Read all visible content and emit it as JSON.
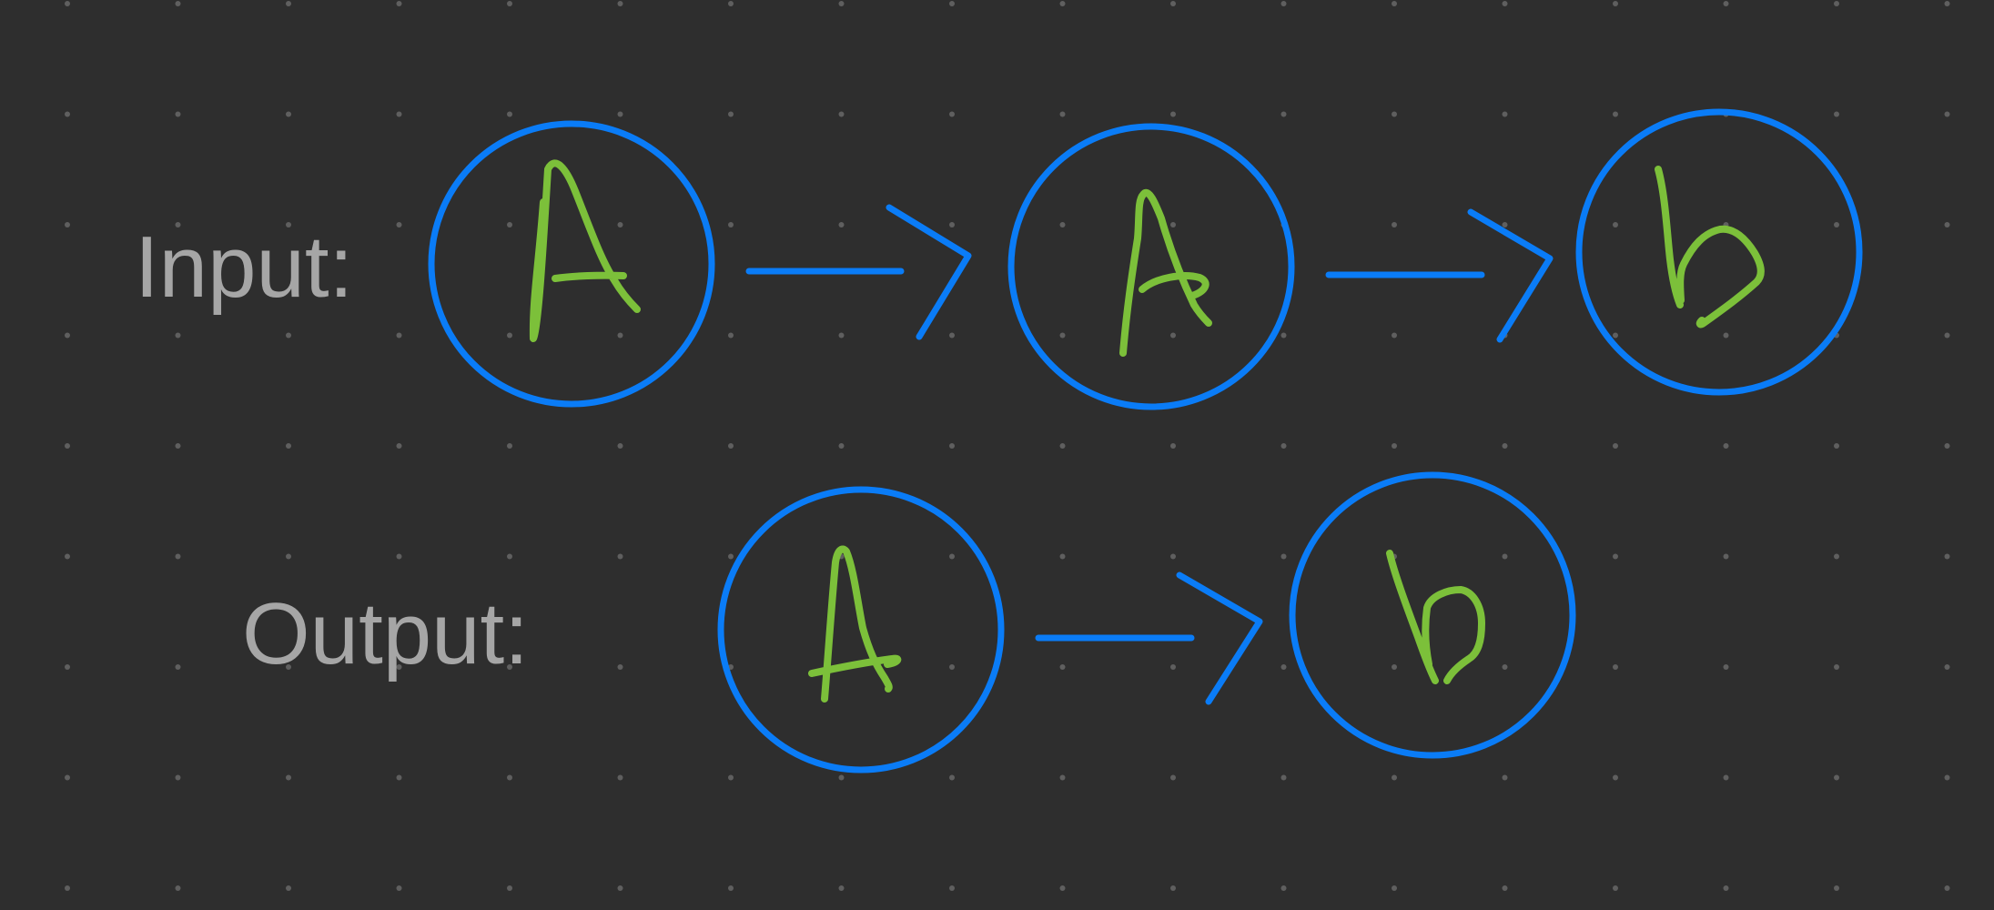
{
  "theme": {
    "background": "#2e2e2e",
    "grid_dot_color": "#5f5f5f",
    "node_stroke_color": "#0a7cf7",
    "glyph_color": "#7cc03a",
    "arrow_color": "#0a7cf7",
    "label_color": "#a6a6a6"
  },
  "diagram": {
    "input": {
      "label": "Input:",
      "nodes": [
        {
          "name": "input-node-1",
          "glyph": "A"
        },
        {
          "name": "input-node-2",
          "glyph": "A"
        },
        {
          "name": "input-node-3",
          "glyph": "b"
        }
      ]
    },
    "output": {
      "label": "Output:",
      "nodes": [
        {
          "name": "output-node-1",
          "glyph": "A"
        },
        {
          "name": "output-node-2",
          "glyph": "b"
        }
      ]
    }
  }
}
